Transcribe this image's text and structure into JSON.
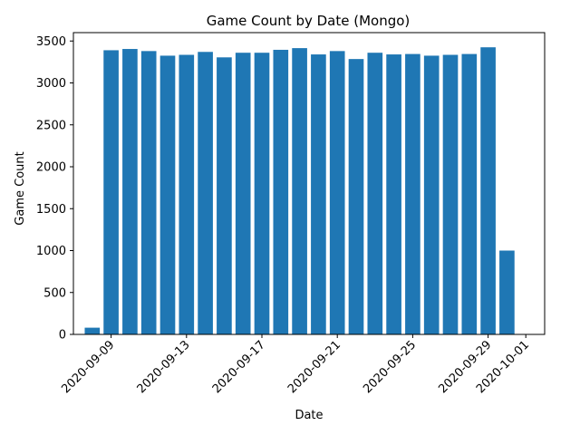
{
  "chart_data": {
    "type": "bar",
    "title": "Game Count by Date (Mongo)",
    "xlabel": "Date",
    "ylabel": "Game Count",
    "bar_color": "#1f77b4",
    "x": [
      "2020-09-08",
      "2020-09-09",
      "2020-09-10",
      "2020-09-11",
      "2020-09-12",
      "2020-09-13",
      "2020-09-14",
      "2020-09-15",
      "2020-09-16",
      "2020-09-17",
      "2020-09-18",
      "2020-09-19",
      "2020-09-20",
      "2020-09-21",
      "2020-09-22",
      "2020-09-23",
      "2020-09-24",
      "2020-09-25",
      "2020-09-26",
      "2020-09-27",
      "2020-09-28",
      "2020-09-29",
      "2020-09-30"
    ],
    "values": [
      80,
      3390,
      3405,
      3380,
      3325,
      3335,
      3370,
      3305,
      3360,
      3360,
      3395,
      3415,
      3340,
      3380,
      3285,
      3360,
      3340,
      3345,
      3325,
      3335,
      3345,
      3425,
      1000
    ],
    "xlim": [
      "2020-09-07",
      "2020-10-02"
    ],
    "ylim": [
      0,
      3600
    ],
    "yticks": [
      0,
      500,
      1000,
      1500,
      2000,
      2500,
      3000,
      3500
    ],
    "xticks": [
      "2020-09-09",
      "2020-09-13",
      "2020-09-17",
      "2020-09-21",
      "2020-09-25",
      "2020-09-29",
      "2020-10-01"
    ],
    "grid": false,
    "legend": "none"
  }
}
